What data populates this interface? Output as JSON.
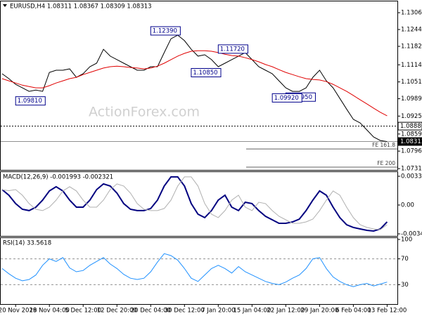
{
  "chart_data": [
    {
      "type": "line",
      "title": "EURUSD,H4  1.08311 1.08367 1.08309 1.08313",
      "watermark": "ActionForex.com",
      "x": [
        0,
        1,
        2,
        3,
        4,
        5,
        6,
        7,
        8,
        9,
        10,
        11,
        12,
        13,
        14,
        15,
        16,
        17,
        18,
        19,
        20,
        21,
        22,
        23,
        24,
        25,
        26,
        27,
        28,
        29,
        30,
        31,
        32,
        33,
        34,
        35,
        36,
        37,
        38,
        39,
        40,
        41,
        42,
        43,
        44,
        45,
        46,
        47,
        48,
        49,
        50,
        51,
        52,
        53,
        54,
        55,
        56,
        57
      ],
      "xlim": [
        0,
        58
      ],
      "xticks": [
        {
          "value": 2,
          "label": "20 Nov 2019"
        },
        {
          "value": 7,
          "label": "28 Nov 04:00"
        },
        {
          "value": 12,
          "label": "5 Dec 12:00"
        },
        {
          "value": 17,
          "label": "12 Dec 20:00"
        },
        {
          "value": 22,
          "label": "20 Dec 04:00"
        },
        {
          "value": 27,
          "label": "30 Dec 12:00"
        },
        {
          "value": 32,
          "label": "7 Jan 20:00"
        },
        {
          "value": 37,
          "label": "15 Jan 04:00"
        },
        {
          "value": 42,
          "label": "22 Jan 12:00"
        },
        {
          "value": 47,
          "label": "29 Jan 20:00"
        },
        {
          "value": 52,
          "label": "6 Feb 04:00"
        },
        {
          "value": 57,
          "label": "13 Feb 12:00"
        }
      ],
      "ylim": [
        1.0724,
        1.1345
      ],
      "yticks": [
        {
          "value": 1.1306,
          "label": "1.13060"
        },
        {
          "value": 1.1244,
          "label": "1.12440"
        },
        {
          "value": 1.1182,
          "label": "1.11820"
        },
        {
          "value": 1.1114,
          "label": "1.11140"
        },
        {
          "value": 1.1051,
          "label": "1.10510"
        },
        {
          "value": 1.0989,
          "label": "1.09890"
        },
        {
          "value": 1.0925,
          "label": "1.09250"
        },
        {
          "value": 1.0859,
          "label": "1.08590"
        },
        {
          "value": 1.0796,
          "label": "1.07960"
        },
        {
          "value": 1.07315,
          "label": "1.07315"
        }
      ],
      "series": [
        {
          "color": "#000000",
          "values": [
            1.1081,
            1.1063,
            1.1042,
            1.1029,
            1.1016,
            1.1021,
            1.1016,
            1.1086,
            1.1094,
            1.1094,
            1.1099,
            1.1068,
            1.1081,
            1.1107,
            1.112,
            1.1171,
            1.1146,
            1.1133,
            1.112,
            1.1107,
            1.1094,
            1.1094,
            1.1107,
            1.1107,
            1.1159,
            1.121,
            1.1223,
            1.1203,
            1.1171,
            1.1146,
            1.1151,
            1.1133,
            1.1107,
            1.112,
            1.1133,
            1.1146,
            1.1159,
            1.1133,
            1.1107,
            1.1094,
            1.1081,
            1.1055,
            1.1029,
            1.1016,
            1.1016,
            1.1029,
            1.1068,
            1.1094,
            1.1055,
            1.1029,
            1.099,
            1.0951,
            1.0913,
            1.09,
            1.0874,
            1.0848,
            1.0835,
            1.0831
          ]
        },
        {
          "color": "#e00000",
          "values": [
            1.1063,
            1.1055,
            1.1047,
            1.1039,
            1.1034,
            1.1029,
            1.1029,
            1.1037,
            1.1047,
            1.1055,
            1.1063,
            1.1068,
            1.1078,
            1.1086,
            1.1094,
            1.1102,
            1.1107,
            1.1109,
            1.1107,
            1.1104,
            1.1102,
            1.1099,
            1.1102,
            1.1109,
            1.112,
            1.1133,
            1.1146,
            1.1156,
            1.1164,
            1.1166,
            1.1166,
            1.1164,
            1.1159,
            1.1153,
            1.1148,
            1.1146,
            1.114,
            1.1133,
            1.1125,
            1.1115,
            1.1107,
            1.1096,
            1.1086,
            1.1078,
            1.107,
            1.1063,
            1.106,
            1.1058,
            1.1052,
            1.1042,
            1.1029,
            1.1016,
            1.1001,
            1.0985,
            1.097,
            1.0954,
            1.0939,
            1.0926
          ]
        }
      ],
      "hlines": [
        {
          "value": 1.0888,
          "label": "1.08880",
          "dash": true,
          "line_color": "#000000",
          "box_color": "#ffffff",
          "text_color": "#000000"
        },
        {
          "value": 1.08313,
          "label": "1.08313",
          "dash": false,
          "line_color": "#909090",
          "box_color": "#000000",
          "text_color": "#ffffff"
        }
      ],
      "fe_levels": [
        {
          "name": "FE 161.8",
          "value": 1.0804
        },
        {
          "name": "FE 200",
          "value": 1.0737
        }
      ],
      "annotations": [
        {
          "x": 22,
          "value": 1.1239,
          "label": "1.12390"
        },
        {
          "x": 2,
          "value": 1.0981,
          "label": "1.09810"
        },
        {
          "x": 32,
          "value": 1.1172,
          "label": "1.11720"
        },
        {
          "x": 28,
          "value": 1.1085,
          "label": "1.10850"
        },
        {
          "x": 42,
          "value": 1.0995,
          "label": "1.09950"
        },
        {
          "x": 40,
          "value": 1.0992,
          "label": "1.09920"
        }
      ]
    },
    {
      "type": "line",
      "title": "MACD(12,26,9) -0.001993 -0.002321",
      "ylim": [
        -0.00365,
        0.00381
      ],
      "yticks": [
        0.003396,
        {
          "value": 0,
          "label": "0.00"
        },
        -0.003404
      ],
      "series": [
        {
          "color": "#000080",
          "values": [
            0.00182,
            0.00116,
            0.00017,
            -0.0005,
            -0.00066,
            -0.00025,
            0.00058,
            0.00166,
            0.00216,
            0.00166,
            0.00058,
            -0.00025,
            -0.00025,
            0.00058,
            0.00182,
            0.00249,
            0.00224,
            0.00141,
            0.00017,
            -0.0005,
            -0.00066,
            -0.00066,
            -0.00041,
            0.00058,
            0.00224,
            0.00332,
            0.00332,
            0.00224,
            0.00017,
            -0.00108,
            -0.00149,
            -0.00066,
            0.00058,
            0.00116,
            -0.00025,
            -0.00066,
            0.00033,
            0.00017,
            -0.00066,
            -0.00133,
            -0.00174,
            -0.00216,
            -0.00216,
            -0.00199,
            -0.00166,
            -0.00066,
            0.00058,
            0.00166,
            0.00116,
            -0.00025,
            -0.00149,
            -0.00232,
            -0.00265,
            -0.00282,
            -0.00299,
            -0.00307,
            -0.00282,
            -0.00199
          ]
        },
        {
          "color": "#b0b0b0",
          "values": [
            0.0018,
            0.0017,
            0.00182,
            0.00116,
            0.00017,
            -0.0005,
            -0.00066,
            -0.00025,
            0.00058,
            0.00166,
            0.00216,
            0.00166,
            0.00058,
            -0.00025,
            -0.00025,
            0.00058,
            0.00182,
            0.00249,
            0.00224,
            0.00141,
            0.00017,
            -0.0005,
            -0.00066,
            -0.00066,
            -0.00041,
            0.00058,
            0.00224,
            0.00332,
            0.00332,
            0.00224,
            0.00017,
            -0.00108,
            -0.00149,
            -0.00066,
            0.00058,
            0.00116,
            -0.00025,
            -0.00066,
            0.00033,
            0.00017,
            -0.00066,
            -0.00133,
            -0.00174,
            -0.00216,
            -0.00216,
            -0.00199,
            -0.00166,
            -0.00066,
            0.00058,
            0.00166,
            0.00116,
            -0.00025,
            -0.00149,
            -0.00232,
            -0.00265,
            -0.00282,
            -0.0029,
            -0.00232
          ]
        }
      ]
    },
    {
      "type": "line",
      "title": "RSI(14) 33.5618",
      "ylim": [
        0,
        100
      ],
      "yticks": [
        100,
        70,
        30
      ],
      "levels": [
        70,
        30
      ],
      "series": [
        {
          "color": "#1e90ff",
          "values": [
            55,
            47,
            40,
            36,
            38,
            45,
            60,
            70,
            66,
            72,
            56,
            50,
            52,
            60,
            66,
            72,
            62,
            55,
            46,
            40,
            38,
            40,
            50,
            65,
            78,
            75,
            68,
            55,
            40,
            35,
            45,
            55,
            60,
            55,
            48,
            58,
            50,
            45,
            40,
            35,
            32,
            30,
            34,
            40,
            45,
            55,
            70,
            72,
            55,
            42,
            35,
            30,
            27,
            30,
            32,
            28,
            31,
            34
          ]
        }
      ]
    }
  ]
}
